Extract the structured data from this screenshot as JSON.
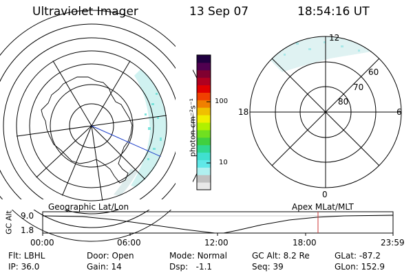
{
  "header": {
    "instrument": "Ultraviolet Imager",
    "date": "13 Sep 07",
    "time": "18:54:16 UT"
  },
  "colorbar": {
    "unit": "photon cm⁻²s⁻¹",
    "ticks": [
      "100",
      "10"
    ],
    "colors": [
      "#e8e8e8",
      "#c0c0c0",
      "#b0f0f0",
      "#60e8e8",
      "#40e0d0",
      "#30d890",
      "#40d040",
      "#70e020",
      "#b0f000",
      "#f0f000",
      "#f0c000",
      "#f08000",
      "#f04000",
      "#e00000",
      "#b00020",
      "#800030",
      "#500050",
      "#200040"
    ]
  },
  "geo_panel": {
    "label": "Geographic Lat/Lon"
  },
  "mag_panel": {
    "label": "Apex MLat/MLT",
    "mlt_labels": {
      "top": "12",
      "left": "18",
      "right": "6",
      "bottom": "0"
    },
    "lat_labels": [
      "60",
      "70",
      "80"
    ]
  },
  "altitude_plot": {
    "ylabel": "GC Alt",
    "yticks": [
      "9.0",
      "1.8"
    ],
    "xticks": [
      "00:00",
      "06:00",
      "12:00",
      "18:00",
      "23:59"
    ],
    "marker_time": "18:54",
    "marker_color": "#cc3333"
  },
  "status": {
    "flt": {
      "label": "Flt:",
      "value": "LBHL"
    },
    "ip": {
      "label": "IP:",
      "value": "36.0"
    },
    "door": {
      "label": "Door:",
      "value": "Open"
    },
    "gain": {
      "label": "Gain:",
      "value": "14"
    },
    "mode": {
      "label": "Mode:",
      "value": "Normal"
    },
    "dsp": {
      "label": "Dsp:",
      "value": "-1.1"
    },
    "gcalt": {
      "label": "GC Alt:",
      "value": "8.2 Re"
    },
    "seq": {
      "label": "Seq:",
      "value": "39"
    },
    "glat": {
      "label": "GLat:",
      "value": "-87.2"
    },
    "glon": {
      "label": "GLon:",
      "value": "152.9"
    }
  }
}
